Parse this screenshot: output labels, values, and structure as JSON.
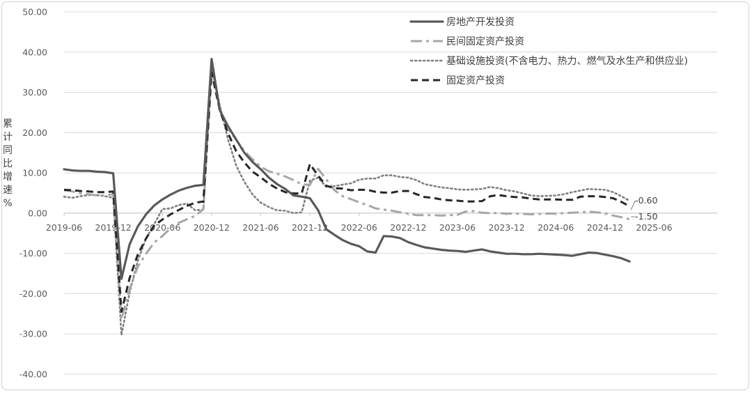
{
  "chart_data": {
    "type": "line",
    "title": "",
    "ylabel": "累计同比增速%",
    "ylim": [
      -40,
      50
    ],
    "yticks": [
      "50.00",
      "40.00",
      "30.00",
      "20.00",
      "10.00",
      "0.00",
      "-10.00",
      "-20.00",
      "-30.00",
      "-40.00"
    ],
    "xticks": [
      "2019-06",
      "2019-12",
      "2020-06",
      "2020-12",
      "2021-06",
      "2021-12",
      "2022-06",
      "2022-12",
      "2023-06",
      "2023-12",
      "2024-06",
      "2024-12",
      "2025-06"
    ],
    "grid": true,
    "legend_position": "top-right",
    "x_start": "2019-06",
    "series": [
      {
        "name": "房地产开发投资",
        "color": "#595959",
        "style": "solid",
        "values": [
          10.9,
          10.6,
          10.5,
          10.5,
          10.3,
          10.2,
          9.9,
          -16.3,
          -7.7,
          -3.3,
          -0.3,
          1.9,
          3.4,
          4.6,
          5.6,
          6.3,
          6.8,
          7.0,
          38.3,
          25.6,
          21.6,
          18.3,
          15.0,
          12.7,
          10.9,
          8.8,
          7.2,
          6.0,
          4.4,
          4.1,
          3.7,
          0.7,
          -4.0,
          -5.4,
          -6.7,
          -7.6,
          -8.2,
          -9.5,
          -9.8,
          -5.7,
          -5.8,
          -6.2,
          -7.2,
          -7.9,
          -8.5,
          -8.8,
          -9.1,
          -9.3,
          -9.4,
          -9.6,
          -9.3,
          -9.0,
          -9.5,
          -9.8,
          -10.1,
          -10.1,
          -10.2,
          -10.2,
          -10.1,
          -10.2,
          -10.3,
          -10.4,
          -10.6,
          -10.2,
          -9.8,
          -9.9,
          -10.3,
          -10.7,
          -11.2,
          -12.0
        ]
      },
      {
        "name": "民间固定资产投资",
        "color": "#a6a6a6",
        "style": "dashdot",
        "values": [
          5.7,
          5.4,
          4.9,
          4.7,
          4.4,
          4.4,
          4.7,
          -26.4,
          -18.8,
          -13.3,
          -10.1,
          -7.3,
          -5.7,
          -3.7,
          -2.4,
          -1.5,
          -0.7,
          1.0,
          36.4,
          26.0,
          21.0,
          18.2,
          15.4,
          13.4,
          11.5,
          10.4,
          9.8,
          9.1,
          8.2,
          7.2,
          7.0,
          11.0,
          8.4,
          5.7,
          4.2,
          3.5,
          2.7,
          2.0,
          1.2,
          0.9,
          0.6,
          0.2,
          -0.1,
          -0.5,
          -0.5,
          -0.5,
          -0.6,
          -0.5,
          -0.4,
          0.4,
          0.5,
          0.1,
          0.0,
          0.0,
          -0.1,
          -0.1,
          -0.2,
          -0.3,
          -0.2,
          -0.1,
          -0.1,
          0.0,
          0.1,
          0.2,
          0.4,
          0.2,
          0.0,
          -0.6,
          -1.0,
          -1.5
        ]
      },
      {
        "name": "基础设施投资(不含电力、热力、燃气及水生产和供应业)",
        "color": "#7f7f7f",
        "style": "dotted",
        "values": [
          4.1,
          3.8,
          4.2,
          4.5,
          4.5,
          4.2,
          3.8,
          -30.3,
          -19.7,
          -11.8,
          -6.3,
          -2.7,
          1.0,
          1.2,
          2.0,
          2.4,
          0.7,
          0.9,
          36.6,
          26.8,
          18.4,
          11.8,
          7.8,
          4.6,
          2.6,
          1.5,
          0.7,
          0.6,
          0.0,
          0.2,
          8.1,
          8.8,
          6.5,
          6.7,
          7.1,
          7.4,
          8.3,
          8.6,
          8.6,
          9.4,
          9.4,
          9.0,
          8.8,
          8.2,
          7.2,
          6.8,
          6.4,
          6.2,
          5.9,
          5.8,
          5.9,
          6.0,
          6.5,
          6.2,
          5.7,
          5.4,
          4.9,
          4.4,
          4.2,
          4.3,
          4.4,
          4.7,
          5.2,
          5.6,
          6.0,
          5.9,
          5.8,
          5.2,
          4.2,
          3.1
        ]
      },
      {
        "name": "固定资产投资",
        "color": "#262626",
        "style": "dashed",
        "values": [
          5.8,
          5.7,
          5.5,
          5.4,
          5.2,
          5.2,
          5.4,
          -24.5,
          -16.1,
          -10.3,
          -6.3,
          -3.1,
          -1.6,
          -0.3,
          0.8,
          1.8,
          2.6,
          2.9,
          35.0,
          25.6,
          19.9,
          15.4,
          12.6,
          10.3,
          8.9,
          7.3,
          6.1,
          5.2,
          4.9,
          4.9,
          12.2,
          9.3,
          6.8,
          6.2,
          6.1,
          5.7,
          5.8,
          5.8,
          5.3,
          5.1,
          5.1,
          5.5,
          5.5,
          4.7,
          4.0,
          3.8,
          3.4,
          3.2,
          3.1,
          2.9,
          2.9,
          3.0,
          4.2,
          4.5,
          4.2,
          4.0,
          3.9,
          3.6,
          3.4,
          3.4,
          3.4,
          3.3,
          3.3,
          4.1,
          4.2,
          4.2,
          4.0,
          3.7,
          2.8,
          1.7
        ]
      }
    ],
    "end_labels": [
      "-0.60",
      "-1.50"
    ]
  }
}
